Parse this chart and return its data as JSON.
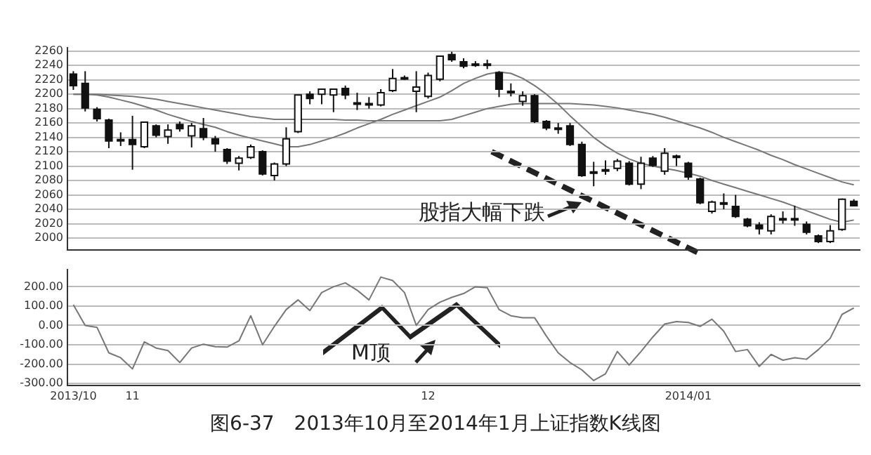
{
  "chart_data": [
    {
      "type": "candlestick",
      "tick_labels": "y",
      "grid": "y",
      "categories": [
        "2013/10",
        null,
        null,
        null,
        null,
        "11",
        null,
        null,
        null,
        null,
        null,
        null,
        null,
        null,
        null,
        null,
        null,
        null,
        null,
        null,
        null,
        null,
        null,
        null,
        null,
        null,
        null,
        null,
        null,
        null,
        "12",
        null,
        null,
        null,
        null,
        null,
        null,
        null,
        null,
        null,
        null,
        null,
        null,
        null,
        null,
        null,
        null,
        null,
        null,
        null,
        null,
        null,
        "2014/01",
        null,
        null,
        null,
        null,
        null,
        null,
        null,
        null,
        null,
        null,
        null,
        null,
        null,
        null
      ],
      "ohlc": [
        [
          2228,
          2232,
          2206,
          2212
        ],
        [
          2215,
          2232,
          2176,
          2181
        ],
        [
          2179,
          2182,
          2162,
          2166
        ],
        [
          2164,
          2166,
          2125,
          2135
        ],
        [
          2137,
          2147,
          2128,
          2137
        ],
        [
          2137,
          2170,
          2095,
          2130
        ],
        [
          2127,
          2162,
          2125,
          2161
        ],
        [
          2156,
          2158,
          2140,
          2143
        ],
        [
          2141,
          2158,
          2131,
          2150
        ],
        [
          2158,
          2162,
          2148,
          2152
        ],
        [
          2142,
          2160,
          2126,
          2156
        ],
        [
          2152,
          2167,
          2136,
          2140
        ],
        [
          2138,
          2142,
          2120,
          2131
        ],
        [
          2123,
          2125,
          2103,
          2107
        ],
        [
          2104,
          2114,
          2094,
          2111
        ],
        [
          2112,
          2130,
          2110,
          2127
        ],
        [
          2120,
          2122,
          2087,
          2089
        ],
        [
          2087,
          2105,
          2080,
          2103
        ],
        [
          2103,
          2154,
          2100,
          2138
        ],
        [
          2148,
          2199,
          2146,
          2199
        ],
        [
          2200,
          2204,
          2186,
          2194
        ],
        [
          2200,
          2208,
          2186,
          2207
        ],
        [
          2199,
          2207,
          2175,
          2207
        ],
        [
          2208,
          2212,
          2193,
          2199
        ],
        [
          2188,
          2202,
          2178,
          2188
        ],
        [
          2187,
          2196,
          2180,
          2187
        ],
        [
          2185,
          2207,
          2183,
          2202
        ],
        [
          2205,
          2235,
          2203,
          2222
        ],
        [
          2223,
          2226,
          2220,
          2223
        ],
        [
          2204,
          2232,
          2175,
          2210
        ],
        [
          2197,
          2230,
          2194,
          2226
        ],
        [
          2221,
          2253,
          2218,
          2253
        ],
        [
          2255,
          2259,
          2245,
          2248
        ],
        [
          2245,
          2250,
          2236,
          2239
        ],
        [
          2242,
          2246,
          2238,
          2242
        ],
        [
          2242,
          2248,
          2235,
          2242
        ],
        [
          2230,
          2232,
          2196,
          2207
        ],
        [
          2204,
          2215,
          2197,
          2204
        ],
        [
          2190,
          2204,
          2184,
          2198
        ],
        [
          2198,
          2200,
          2160,
          2162
        ],
        [
          2162,
          2164,
          2150,
          2153
        ],
        [
          2153,
          2160,
          2145,
          2153
        ],
        [
          2156,
          2160,
          2128,
          2130
        ],
        [
          2130,
          2134,
          2085,
          2087
        ],
        [
          2092,
          2106,
          2072,
          2092
        ],
        [
          2095,
          2108,
          2088,
          2095
        ],
        [
          2097,
          2110,
          2093,
          2107
        ],
        [
          2104,
          2107,
          2073,
          2075
        ],
        [
          2075,
          2113,
          2068,
          2104
        ],
        [
          2111,
          2114,
          2099,
          2101
        ],
        [
          2093,
          2125,
          2088,
          2118
        ],
        [
          2114,
          2116,
          2100,
          2114
        ],
        [
          2104,
          2106,
          2081,
          2085
        ],
        [
          2082,
          2084,
          2047,
          2049
        ],
        [
          2037,
          2052,
          2034,
          2050
        ],
        [
          2049,
          2062,
          2040,
          2049
        ],
        [
          2044,
          2060,
          2028,
          2030
        ],
        [
          2026,
          2028,
          2015,
          2017
        ],
        [
          2018,
          2022,
          2005,
          2013
        ],
        [
          2010,
          2033,
          2005,
          2030
        ],
        [
          2027,
          2037,
          2020,
          2027
        ],
        [
          2027,
          2045,
          2017,
          2027
        ],
        [
          2019,
          2023,
          2005,
          2008
        ],
        [
          2003,
          2005,
          1993,
          1995
        ],
        [
          1995,
          2018,
          1993,
          2010
        ],
        [
          2012,
          2055,
          2010,
          2054
        ],
        [
          2051,
          2054,
          2044,
          2045
        ]
      ],
      "series": [
        {
          "type": "line",
          "color": "#777777",
          "values": [
            2200,
            2200,
            2199,
            2196,
            2192,
            2188,
            2183,
            2178,
            2172,
            2167,
            2162,
            2158,
            2154,
            2148,
            2143,
            2139,
            2135,
            2131,
            2127,
            2127,
            2130,
            2135,
            2140,
            2146,
            2153,
            2159,
            2165,
            2172,
            2178,
            2184,
            2190,
            2196,
            2205,
            2215,
            2222,
            2228,
            2231,
            2229,
            2222,
            2212,
            2200,
            2186,
            2170,
            2155,
            2140,
            2128,
            2118,
            2110,
            2104,
            2100,
            2097,
            2094,
            2090,
            2086,
            2080,
            2075,
            2070,
            2065,
            2060,
            2055,
            2050,
            2044,
            2038,
            2032,
            2026,
            2022,
            2025
          ]
        },
        {
          "type": "line",
          "color": "#777777",
          "values": [
            2200,
            2200,
            2200,
            2199,
            2198,
            2197,
            2195,
            2193,
            2190,
            2187,
            2184,
            2181,
            2178,
            2175,
            2172,
            2169,
            2167,
            2165,
            2165,
            2165,
            2165,
            2165,
            2165,
            2164,
            2164,
            2163,
            2163,
            2163,
            2163,
            2163,
            2163,
            2163,
            2165,
            2170,
            2175,
            2180,
            2183,
            2186,
            2187,
            2187,
            2187,
            2187,
            2187,
            2186,
            2185,
            2183,
            2181,
            2178,
            2175,
            2172,
            2168,
            2163,
            2158,
            2153,
            2147,
            2140,
            2134,
            2128,
            2122,
            2115,
            2109,
            2102,
            2096,
            2090,
            2084,
            2078,
            2074
          ]
        }
      ],
      "ylim": [
        1983,
        2265
      ],
      "yticks": [
        2000,
        2020,
        2040,
        2060,
        2080,
        2100,
        2120,
        2140,
        2160,
        2180,
        2200,
        2220,
        2240,
        2260
      ],
      "annotations": [
        "股指大幅下跌"
      ]
    },
    {
      "type": "line",
      "color": "#777777",
      "grid": "y",
      "categories": [
        "2013/10",
        null,
        null,
        null,
        null,
        "11",
        null,
        null,
        null,
        null,
        null,
        null,
        null,
        null,
        null,
        null,
        null,
        null,
        null,
        null,
        null,
        null,
        null,
        null,
        null,
        null,
        null,
        null,
        null,
        null,
        "12",
        null,
        null,
        null,
        null,
        null,
        null,
        null,
        null,
        null,
        null,
        null,
        null,
        null,
        null,
        null,
        null,
        null,
        null,
        null,
        null,
        null,
        "2014/01",
        null,
        null,
        null,
        null,
        null,
        null,
        null,
        null,
        null,
        null,
        null,
        null,
        null,
        null
      ],
      "values": [
        107,
        0,
        -10,
        -142,
        -167,
        -225,
        -85,
        -117,
        -130,
        -192,
        -117,
        -97,
        -110,
        -112,
        -80,
        50,
        -100,
        -5,
        82,
        132,
        77,
        170,
        200,
        220,
        182,
        132,
        250,
        232,
        170,
        0,
        82,
        120,
        145,
        165,
        200,
        195,
        82,
        50,
        40,
        40,
        -55,
        -142,
        -192,
        -230,
        -285,
        -250,
        -135,
        -205,
        -135,
        -60,
        7,
        20,
        15,
        -5,
        32,
        -30,
        -135,
        -125,
        -212,
        -150,
        -180,
        -167,
        -175,
        -125,
        -67,
        57,
        90
      ],
      "ylim": [
        -310,
        290
      ],
      "yticks": [
        {
          "value": -300,
          "label": "-300.00"
        },
        {
          "value": -200,
          "label": "-200.00"
        },
        {
          "value": -100,
          "label": "-100.00"
        },
        {
          "value": 0,
          "label": "0.00"
        },
        {
          "value": 100,
          "label": "100.00"
        },
        {
          "value": 200,
          "label": "200.00"
        }
      ],
      "annotations": [
        "M顶",
        "图6-37　2013年10月至2014年1月上证指数K线图"
      ]
    }
  ]
}
